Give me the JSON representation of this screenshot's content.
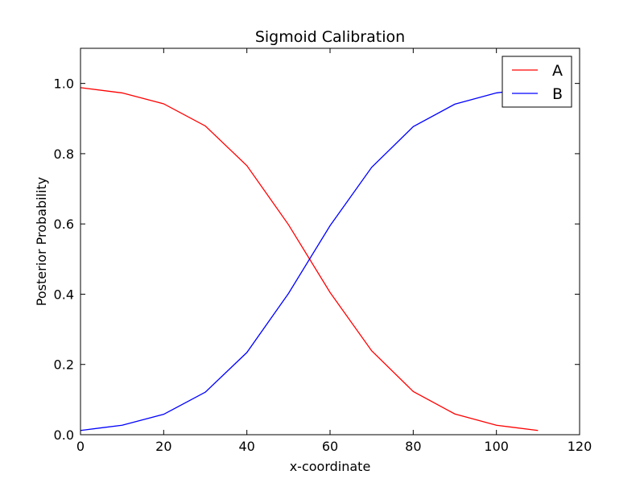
{
  "chart_data": {
    "type": "line",
    "title": "Sigmoid Calibration",
    "xlabel": "x-coordinate",
    "ylabel": "Posterior Probability",
    "xlim": [
      0,
      120
    ],
    "ylim": [
      0,
      1.1
    ],
    "x_ticks": [
      0,
      20,
      40,
      60,
      80,
      100,
      120
    ],
    "x_tick_labels": [
      "0",
      "20",
      "40",
      "60",
      "80",
      "100",
      "120"
    ],
    "y_ticks": [
      0.0,
      0.2,
      0.4,
      0.6,
      0.8,
      1.0
    ],
    "y_tick_labels": [
      "0.0",
      "0.2",
      "0.4",
      "0.6",
      "0.8",
      "1.0"
    ],
    "grid": false,
    "legend_position": "top-right",
    "x": [
      0,
      10,
      20,
      30,
      40,
      50,
      60,
      70,
      80,
      90,
      100,
      110
    ],
    "series": [
      {
        "name": "A",
        "color": "#ff0000",
        "values": [
          0.988,
          0.973,
          0.942,
          0.879,
          0.766,
          0.598,
          0.405,
          0.239,
          0.123,
          0.059,
          0.027,
          0.012
        ]
      },
      {
        "name": "B",
        "color": "#0000ff",
        "values": [
          0.012,
          0.027,
          0.058,
          0.121,
          0.234,
          0.402,
          0.595,
          0.761,
          0.877,
          0.941,
          0.973,
          0.988
        ]
      }
    ]
  }
}
